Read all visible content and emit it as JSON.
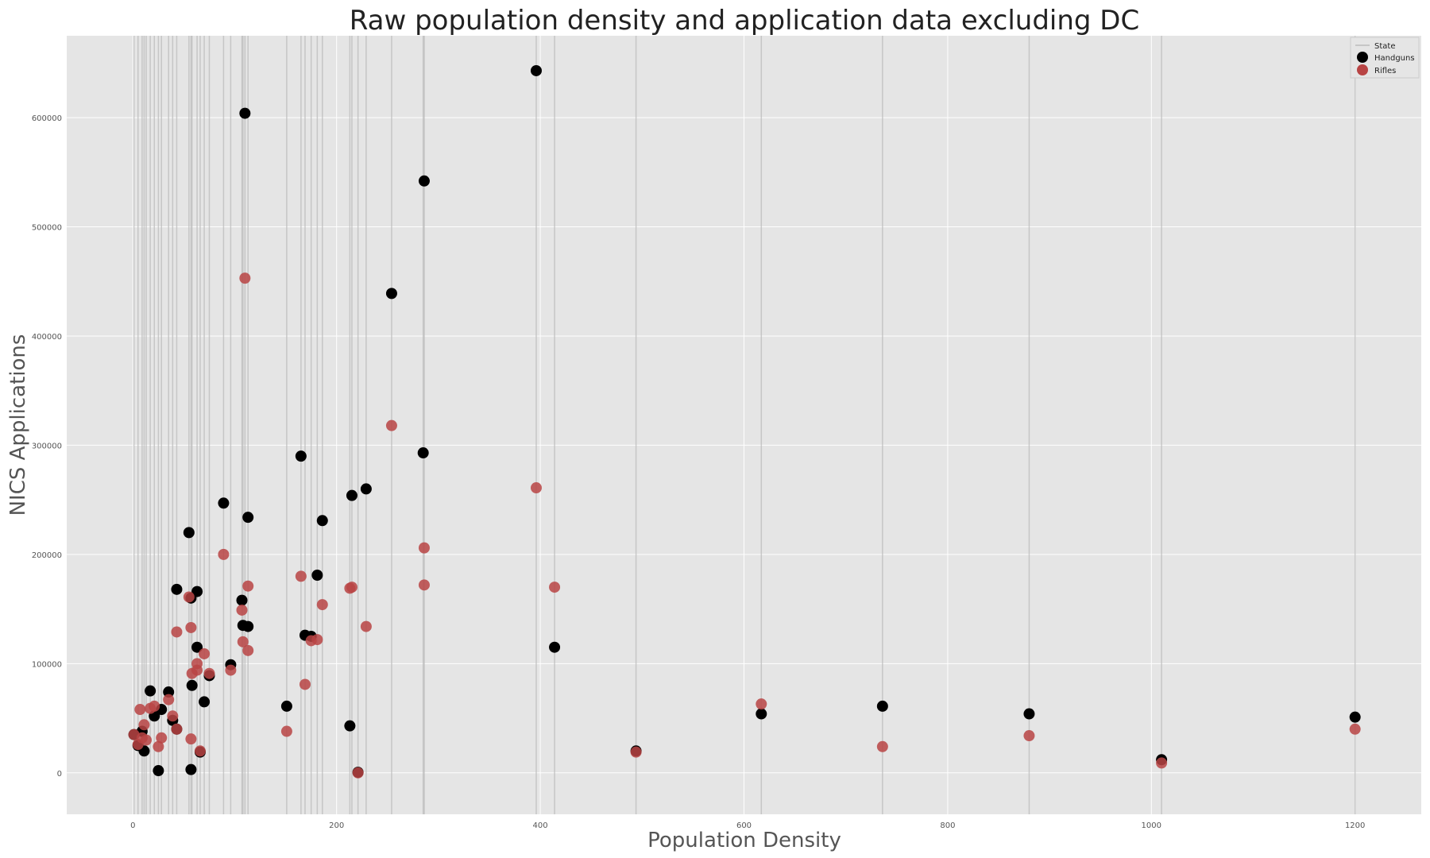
{
  "chart_data": {
    "type": "scatter",
    "title": "Raw population density and application data excluding DC",
    "xlabel": "Population Density",
    "ylabel": "NICS Applications",
    "xlim": [
      -65,
      1265
    ],
    "ylim": [
      -38000,
      675000
    ],
    "xticks": [
      0,
      200,
      400,
      600,
      800,
      1000,
      1200
    ],
    "yticks": [
      0,
      100000,
      200000,
      300000,
      400000,
      500000,
      600000
    ],
    "grid": true,
    "legend_position": "top-right",
    "legend": [
      {
        "label": "State",
        "kind": "line",
        "color": "#bbbbbb"
      },
      {
        "label": "Handguns",
        "kind": "marker",
        "color": "#000000"
      },
      {
        "label": "Rifles",
        "kind": "marker",
        "color": "#b84444"
      }
    ],
    "state_lines": [
      1,
      5,
      9,
      11,
      13,
      17,
      21,
      25,
      28,
      35,
      39,
      43,
      55,
      57,
      58,
      63,
      66,
      70,
      75,
      89,
      96,
      107,
      108,
      110,
      113,
      151,
      165,
      169,
      175,
      181,
      186,
      213,
      215,
      221,
      229,
      254,
      285,
      286,
      396,
      414,
      494,
      617,
      736,
      880,
      1010,
      1200
    ],
    "series": [
      {
        "name": "Handguns",
        "color": "#000000",
        "points": [
          [
            1,
            35000
          ],
          [
            5,
            25000
          ],
          [
            9,
            38000
          ],
          [
            11,
            20000
          ],
          [
            17,
            75000
          ],
          [
            21,
            52000
          ],
          [
            25,
            2000
          ],
          [
            28,
            58000
          ],
          [
            35,
            74000
          ],
          [
            39,
            48000
          ],
          [
            43,
            40000
          ],
          [
            43,
            168000
          ],
          [
            55,
            220000
          ],
          [
            57,
            3000
          ],
          [
            57,
            160000
          ],
          [
            58,
            80000
          ],
          [
            63,
            166000
          ],
          [
            63,
            115000
          ],
          [
            66,
            19000
          ],
          [
            70,
            65000
          ],
          [
            75,
            89000
          ],
          [
            89,
            247000
          ],
          [
            96,
            99000
          ],
          [
            107,
            158000
          ],
          [
            108,
            135000
          ],
          [
            110,
            604000
          ],
          [
            113,
            134000
          ],
          [
            113,
            234000
          ],
          [
            151,
            61000
          ],
          [
            165,
            290000
          ],
          [
            169,
            126000
          ],
          [
            175,
            125000
          ],
          [
            181,
            181000
          ],
          [
            186,
            231000
          ],
          [
            213,
            43000
          ],
          [
            215,
            254000
          ],
          [
            221,
            500
          ],
          [
            229,
            260000
          ],
          [
            254,
            439000
          ],
          [
            285,
            293000
          ],
          [
            286,
            542000
          ],
          [
            396,
            643000
          ],
          [
            414,
            115000
          ],
          [
            494,
            20000
          ],
          [
            617,
            54000
          ],
          [
            736,
            61000
          ],
          [
            880,
            54000
          ],
          [
            1010,
            12000
          ],
          [
            1200,
            51000
          ]
        ]
      },
      {
        "name": "Rifles",
        "color": "#b84444",
        "points": [
          [
            1,
            35000
          ],
          [
            5,
            26000
          ],
          [
            7,
            58000
          ],
          [
            9,
            32000
          ],
          [
            11,
            44000
          ],
          [
            13,
            30000
          ],
          [
            17,
            59000
          ],
          [
            21,
            61000
          ],
          [
            25,
            24000
          ],
          [
            28,
            32000
          ],
          [
            35,
            67000
          ],
          [
            39,
            52000
          ],
          [
            43,
            40000
          ],
          [
            43,
            129000
          ],
          [
            55,
            161000
          ],
          [
            57,
            133000
          ],
          [
            57,
            31000
          ],
          [
            58,
            91000
          ],
          [
            63,
            100000
          ],
          [
            63,
            94000
          ],
          [
            66,
            20000
          ],
          [
            70,
            109000
          ],
          [
            75,
            91000
          ],
          [
            89,
            200000
          ],
          [
            96,
            94000
          ],
          [
            107,
            149000
          ],
          [
            108,
            120000
          ],
          [
            110,
            453000
          ],
          [
            113,
            112000
          ],
          [
            113,
            171000
          ],
          [
            151,
            38000
          ],
          [
            165,
            180000
          ],
          [
            169,
            81000
          ],
          [
            175,
            121000
          ],
          [
            181,
            122000
          ],
          [
            186,
            154000
          ],
          [
            213,
            169000
          ],
          [
            215,
            170000
          ],
          [
            221,
            0
          ],
          [
            229,
            134000
          ],
          [
            254,
            318000
          ],
          [
            286,
            206000
          ],
          [
            286,
            172000
          ],
          [
            396,
            261000
          ],
          [
            414,
            170000
          ],
          [
            494,
            19000
          ],
          [
            617,
            63000
          ],
          [
            736,
            24000
          ],
          [
            880,
            34000
          ],
          [
            1010,
            9000
          ],
          [
            1200,
            40000
          ]
        ]
      }
    ]
  }
}
